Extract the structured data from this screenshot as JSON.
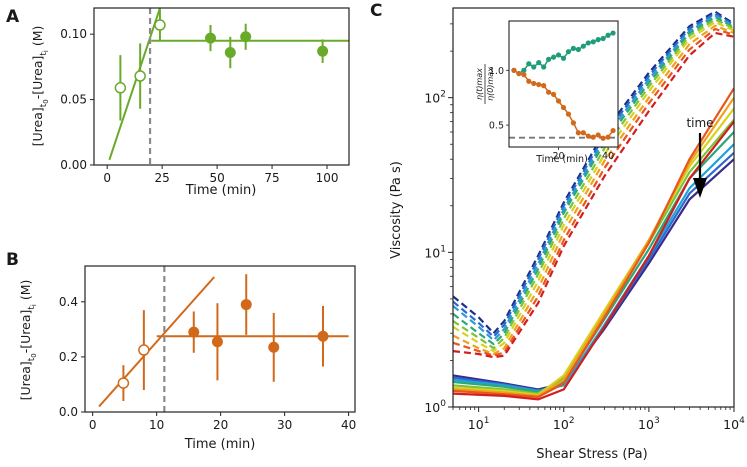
{
  "chart_data": [
    {
      "panel": "A",
      "type": "scatter",
      "panel_label": "A",
      "xlabel": "Time (min)",
      "ylabel": "[Urea]t0-[Urea]ti (M)",
      "ylabel_parts": {
        "base1": "[Urea]",
        "sub1": "t",
        "subsub1": "0",
        "mid": "-[Urea]",
        "sub2": "t",
        "subsub2": "i",
        "tail": " (M)"
      },
      "xlim": [
        -6,
        110
      ],
      "ylim": [
        0,
        0.12
      ],
      "xticks": [
        0,
        25,
        50,
        75,
        100
      ],
      "yticks": [
        0.0,
        0.05,
        0.1
      ],
      "ytick_labels": [
        "0.00",
        "0.05",
        "0.10"
      ],
      "color": "#6aaa2a",
      "open_points": [
        {
          "x": 6,
          "y": 0.059,
          "err": 0.025
        },
        {
          "x": 15,
          "y": 0.068,
          "err": 0.025
        },
        {
          "x": 24,
          "y": 0.107,
          "err": 0.012
        }
      ],
      "filled_points": [
        {
          "x": 47,
          "y": 0.097,
          "err": 0.01
        },
        {
          "x": 56,
          "y": 0.086,
          "err": 0.012
        },
        {
          "x": 63,
          "y": 0.098,
          "err": 0.01
        },
        {
          "x": 98,
          "y": 0.087,
          "err": 0.009
        }
      ],
      "rise_line": {
        "x": [
          1,
          26
        ],
        "y": [
          0.004,
          0.13
        ]
      },
      "plateau_line": {
        "x": [
          20,
          110
        ],
        "y": [
          0.095,
          0.095
        ]
      },
      "vline_x": 19.5
    },
    {
      "panel": "B",
      "type": "scatter",
      "panel_label": "B",
      "xlabel": "Time (min)",
      "ylabel": "[Urea]t0-[Urea]ti (M)",
      "ylabel_parts": {
        "base1": "[Urea]",
        "sub1": "t",
        "subsub1": "0",
        "mid": "-[Urea]",
        "sub2": "t",
        "subsub2": "i",
        "tail": " (M)"
      },
      "xlim": [
        -1.2,
        41
      ],
      "ylim": [
        0,
        0.53
      ],
      "xticks": [
        0,
        10,
        20,
        30,
        40
      ],
      "yticks": [
        0.0,
        0.2,
        0.4
      ],
      "ytick_labels": [
        "0.0",
        "0.2",
        "0.4"
      ],
      "color": "#d2691a",
      "open_points": [
        {
          "x": 4.8,
          "y": 0.105,
          "err": 0.065
        },
        {
          "x": 8,
          "y": 0.225,
          "err": 0.145
        }
      ],
      "filled_points": [
        {
          "x": 15.8,
          "y": 0.29,
          "err": 0.075
        },
        {
          "x": 19.5,
          "y": 0.255,
          "err": 0.14
        },
        {
          "x": 24,
          "y": 0.39,
          "err": 0.11
        },
        {
          "x": 28.3,
          "y": 0.235,
          "err": 0.125
        },
        {
          "x": 36,
          "y": 0.275,
          "err": 0.11
        }
      ],
      "rise_line": {
        "x": [
          1,
          19
        ],
        "y": [
          0.02,
          0.49
        ]
      },
      "plateau_line": {
        "x": [
          10,
          40
        ],
        "y": [
          0.275,
          0.275
        ]
      },
      "vline_x": 11.2
    },
    {
      "panel": "C",
      "type": "line",
      "panel_label": "C",
      "xlabel": "Shear Stress (Pa)",
      "ylabel": "Viscosity (Pa s)",
      "xscale": "log",
      "yscale": "log",
      "xlim": [
        5,
        10000
      ],
      "ylim": [
        1,
        380
      ],
      "xtick_exponents": [
        "1",
        "2",
        "3",
        "4"
      ],
      "ytick_exponents": [
        "0",
        "1",
        "2"
      ],
      "tick_base": "10",
      "annotation": "time",
      "series_dashed": [
        {
          "color": "#1c2f8a",
          "x": [
            5,
            10,
            15,
            20,
            50,
            100,
            300,
            1000,
            3000,
            6000,
            10000
          ],
          "y": [
            5.2,
            3.8,
            3.0,
            3.6,
            9.5,
            21,
            60,
            145,
            290,
            360,
            300
          ]
        },
        {
          "color": "#2a6ad0",
          "x": [
            5,
            10,
            15,
            20,
            50,
            100,
            300,
            1000,
            3000,
            6000,
            10000
          ],
          "y": [
            4.8,
            3.5,
            2.85,
            3.4,
            9,
            20,
            57,
            138,
            280,
            350,
            295
          ]
        },
        {
          "color": "#2f9bd6",
          "x": [
            5,
            10,
            15,
            20,
            50,
            100,
            300,
            1000,
            3000,
            6000,
            10000
          ],
          "y": [
            4.5,
            3.3,
            2.7,
            3.2,
            8.4,
            19,
            54,
            132,
            270,
            340,
            290
          ]
        },
        {
          "color": "#2aa87a",
          "x": [
            5,
            10,
            15,
            20,
            50,
            100,
            300,
            1000,
            3000,
            6000,
            10000
          ],
          "y": [
            4.0,
            3.0,
            2.55,
            3.0,
            7.8,
            18,
            51,
            125,
            262,
            332,
            285
          ]
        },
        {
          "color": "#7cc23a",
          "x": [
            5,
            10,
            15,
            20,
            50,
            100,
            300,
            1000,
            3000,
            6000,
            10000
          ],
          "y": [
            3.6,
            2.8,
            2.4,
            2.8,
            7.2,
            16.5,
            47,
            118,
            252,
            320,
            280
          ]
        },
        {
          "color": "#d6d21e",
          "x": [
            5,
            10,
            15,
            20,
            50,
            100,
            300,
            1000,
            3000,
            6000,
            10000
          ],
          "y": [
            3.3,
            2.6,
            2.3,
            2.6,
            6.5,
            15,
            43,
            110,
            240,
            308,
            272
          ]
        },
        {
          "color": "#f0a11c",
          "x": [
            5,
            10,
            15,
            20,
            50,
            100,
            300,
            1000,
            3000,
            6000,
            10000
          ],
          "y": [
            2.9,
            2.4,
            2.2,
            2.4,
            5.8,
            13.5,
            39,
            100,
            222,
            292,
            262
          ]
        },
        {
          "color": "#e8561c",
          "x": [
            5,
            10,
            15,
            20,
            50,
            100,
            300,
            1000,
            3000,
            6000,
            10000
          ],
          "y": [
            2.6,
            2.3,
            2.15,
            2.25,
            5.2,
            12,
            35,
            92,
            205,
            278,
            255
          ]
        },
        {
          "color": "#d41d1d",
          "x": [
            5,
            10,
            15,
            20,
            50,
            100,
            300,
            1000,
            3000,
            6000,
            10000
          ],
          "y": [
            2.3,
            2.2,
            2.1,
            2.15,
            4.7,
            11,
            31,
            82,
            188,
            262,
            248
          ]
        }
      ],
      "series_solid": [
        {
          "color": "#3a2a8a",
          "x": [
            5,
            20,
            50,
            100,
            300,
            1000,
            3000,
            10000
          ],
          "y": [
            1.6,
            1.42,
            1.3,
            1.42,
            3.2,
            8.5,
            22,
            40
          ]
        },
        {
          "color": "#2a6ad0",
          "x": [
            5,
            20,
            50,
            100,
            300,
            1000,
            3000,
            10000
          ],
          "y": [
            1.55,
            1.4,
            1.28,
            1.4,
            3.3,
            9,
            24,
            44
          ]
        },
        {
          "color": "#1fa3d8",
          "x": [
            5,
            20,
            50,
            100,
            300,
            1000,
            3000,
            10000
          ],
          "y": [
            1.5,
            1.38,
            1.27,
            1.38,
            3.4,
            9.5,
            26,
            50
          ]
        },
        {
          "color": "#2aa87a",
          "x": [
            5,
            20,
            50,
            100,
            300,
            1000,
            3000,
            10000
          ],
          "y": [
            1.45,
            1.35,
            1.25,
            1.45,
            3.7,
            10.5,
            30,
            60
          ]
        },
        {
          "color": "#7cc23a",
          "x": [
            5,
            20,
            50,
            100,
            300,
            1000,
            3000,
            10000
          ],
          "y": [
            1.38,
            1.3,
            1.22,
            1.55,
            4.0,
            11.5,
            33,
            72
          ]
        },
        {
          "color": "#d6d21e",
          "x": [
            5,
            20,
            50,
            100,
            300,
            1000,
            3000,
            10000
          ],
          "y": [
            1.33,
            1.27,
            1.2,
            1.6,
            4.2,
            12,
            36,
            85
          ]
        },
        {
          "color": "#f0a11c",
          "x": [
            5,
            20,
            50,
            100,
            300,
            1000,
            3000,
            10000
          ],
          "y": [
            1.3,
            1.24,
            1.18,
            1.5,
            4.0,
            12,
            38,
            100
          ]
        },
        {
          "color": "#e8561c",
          "x": [
            5,
            20,
            50,
            100,
            300,
            1000,
            3000,
            10000
          ],
          "y": [
            1.27,
            1.21,
            1.16,
            1.42,
            3.8,
            11.5,
            40,
            115
          ]
        },
        {
          "color": "#d41d1d",
          "x": [
            5,
            20,
            50,
            100,
            300,
            1000,
            3000,
            10000
          ],
          "y": [
            1.22,
            1.18,
            1.12,
            1.3,
            3.3,
            9.5,
            30,
            70
          ]
        }
      ],
      "inset": {
        "type": "line",
        "xlabel": "Time (min)",
        "ylabel": "η(t)max / η(0)max",
        "ylabel_num": "η(t)max",
        "ylabel_den": "η(0)max",
        "xlim": [
          0,
          44
        ],
        "ylim": [
          0.3,
          1.45
        ],
        "xticks": [
          20,
          40
        ],
        "yticks": [
          0.5,
          1.0
        ],
        "ytick_labels": [
          "0.5",
          "1.0"
        ],
        "dashed_ref_y": 0.385,
        "series": [
          {
            "name": "teal",
            "color": "#1f9c7a",
            "x": [
              2,
              4,
              6,
              8,
              10,
              12,
              14,
              16,
              18,
              20,
              22,
              24,
              26,
              28,
              30,
              32,
              34,
              36,
              38,
              40,
              42
            ],
            "y": [
              1.0,
              0.97,
              1.0,
              1.06,
              1.03,
              1.07,
              1.03,
              1.1,
              1.12,
              1.14,
              1.11,
              1.17,
              1.2,
              1.19,
              1.22,
              1.25,
              1.26,
              1.28,
              1.29,
              1.32,
              1.34
            ]
          },
          {
            "name": "orange",
            "color": "#d2691a",
            "x": [
              2,
              4,
              6,
              8,
              10,
              12,
              14,
              16,
              18,
              20,
              22,
              24,
              26,
              28,
              30,
              32,
              34,
              36,
              38,
              40,
              42
            ],
            "y": [
              1.0,
              0.97,
              0.96,
              0.9,
              0.88,
              0.87,
              0.86,
              0.8,
              0.78,
              0.72,
              0.66,
              0.6,
              0.52,
              0.43,
              0.43,
              0.4,
              0.39,
              0.41,
              0.38,
              0.39,
              0.45
            ]
          }
        ]
      }
    }
  ]
}
